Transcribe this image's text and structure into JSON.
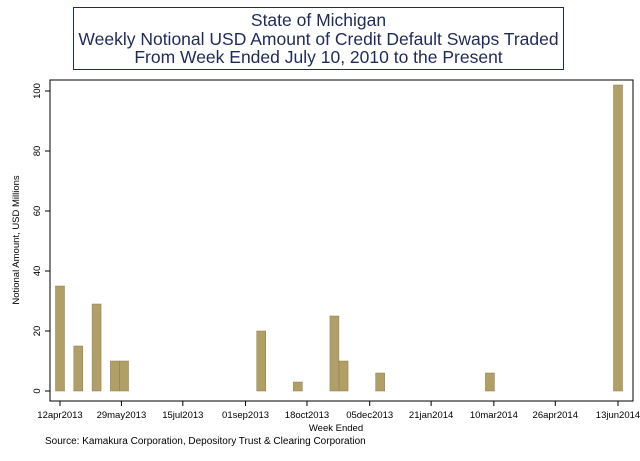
{
  "title": {
    "lines": [
      "State of Michigan",
      "Weekly Notional USD Amount of Credit Default Swaps Traded",
      "From Week Ended July 10, 2010 to the Present"
    ]
  },
  "source": "Source: Kamakura Corporation, Depository Trust & Clearing Corporation",
  "colors": {
    "bar": "#b09f66",
    "bar_edge": "#8c7d4c",
    "title": "#1f2a5a",
    "axis": "#000000"
  },
  "chart_data": {
    "type": "bar",
    "title": "State of Michigan Weekly Notional USD Amount of Credit Default Swaps Traded From Week Ended July 10, 2010 to the Present",
    "xlabel": "Week Ended",
    "ylabel": "Notional Amount, USD Millions",
    "x_axis": {
      "type": "date",
      "min": "2013-04-12",
      "max": "2014-06-13"
    },
    "x_ticks": [
      {
        "label": "12apr2013",
        "date": "2013-04-12"
      },
      {
        "label": "29may2013",
        "date": "2013-05-29"
      },
      {
        "label": "15jul2013",
        "date": "2013-07-15"
      },
      {
        "label": "01sep2013",
        "date": "2013-09-01"
      },
      {
        "label": "18oct2013",
        "date": "2013-10-18"
      },
      {
        "label": "05dec2013",
        "date": "2013-12-05"
      },
      {
        "label": "21jan2014",
        "date": "2014-01-21"
      },
      {
        "label": "10mar2014",
        "date": "2014-03-10"
      },
      {
        "label": "26apr2014",
        "date": "2014-04-26"
      },
      {
        "label": "13jun2014",
        "date": "2014-06-13"
      }
    ],
    "ylim": [
      0,
      102
    ],
    "y_ticks": [
      0,
      20,
      40,
      60,
      80,
      100
    ],
    "grid": false,
    "bars": [
      {
        "week_ended": "2013-04-12",
        "value": 35
      },
      {
        "week_ended": "2013-04-26",
        "value": 15
      },
      {
        "week_ended": "2013-05-10",
        "value": 29
      },
      {
        "week_ended": "2013-05-24",
        "value": 10
      },
      {
        "week_ended": "2013-05-31",
        "value": 10
      },
      {
        "week_ended": "2013-09-13",
        "value": 20
      },
      {
        "week_ended": "2013-10-11",
        "value": 3
      },
      {
        "week_ended": "2013-11-08",
        "value": 25
      },
      {
        "week_ended": "2013-11-15",
        "value": 10
      },
      {
        "week_ended": "2013-12-13",
        "value": 6
      },
      {
        "week_ended": "2014-03-07",
        "value": 6
      },
      {
        "week_ended": "2014-06-13",
        "value": 102
      }
    ]
  }
}
